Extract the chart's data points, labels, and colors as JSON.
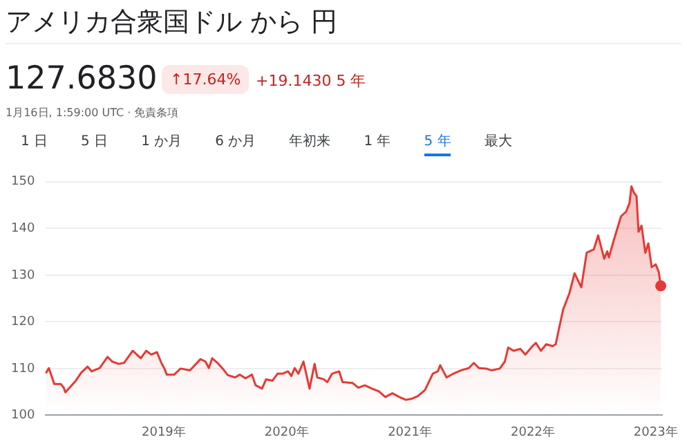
{
  "chart_data": {
    "type": "area",
    "title": "アメリカ合衆国ドル から 円",
    "subtitle": "127.6830",
    "annotations": [
      "↑17.64%",
      "+19.1430 5 年",
      "1月16日, 1:59:00 UTC · 免責条項",
      "1 日",
      "5 日",
      "1 か月",
      "6 か月",
      "年初来",
      "1 年",
      "5 年",
      "最大"
    ],
    "x": [
      "2018-01-16",
      "2018-01-25",
      "2018-02-10",
      "2018-03-01",
      "2018-03-10",
      "2018-03-15",
      "2018-04-15",
      "2018-05-01",
      "2018-05-20",
      "2018-06-01",
      "2018-06-25",
      "2018-07-18",
      "2018-08-01",
      "2018-08-20",
      "2018-09-05",
      "2018-10-01",
      "2018-10-25",
      "2018-11-10",
      "2018-11-25",
      "2018-12-12",
      "2018-12-25",
      "2019-01-03",
      "2019-01-10",
      "2019-02-01",
      "2019-02-20",
      "2019-03-20",
      "2019-04-20",
      "2019-05-05",
      "2019-05-15",
      "2019-05-25",
      "2019-06-10",
      "2019-06-25",
      "2019-07-10",
      "2019-08-01",
      "2019-08-15",
      "2019-09-01",
      "2019-09-20",
      "2019-10-01",
      "2019-10-20",
      "2019-11-01",
      "2019-11-20",
      "2019-12-05",
      "2019-12-20",
      "2020-01-05",
      "2020-01-15",
      "2020-01-25",
      "2020-02-05",
      "2020-02-20",
      "2020-03-09",
      "2020-03-24",
      "2020-04-01",
      "2020-04-20",
      "2020-05-01",
      "2020-05-15",
      "2020-06-05",
      "2020-06-15",
      "2020-07-15",
      "2020-08-01",
      "2020-08-20",
      "2020-09-10",
      "2020-10-01",
      "2020-10-20",
      "2020-11-10",
      "2020-12-01",
      "2020-12-20",
      "2021-01-05",
      "2021-01-25",
      "2021-02-15",
      "2021-03-10",
      "2021-03-25",
      "2021-04-01",
      "2021-04-20",
      "2021-05-10",
      "2021-06-01",
      "2021-06-25",
      "2021-07-10",
      "2021-07-25",
      "2021-08-15",
      "2021-09-01",
      "2021-09-25",
      "2021-10-10",
      "2021-10-20",
      "2021-11-05",
      "2021-11-25",
      "2021-12-10",
      "2021-12-31",
      "2022-01-10",
      "2022-01-25",
      "2022-02-10",
      "2022-03-01",
      "2022-03-10",
      "2022-03-20",
      "2022-04-01",
      "2022-04-20",
      "2022-05-05",
      "2022-05-25",
      "2022-06-10",
      "2022-07-01",
      "2022-07-14",
      "2022-08-01",
      "2022-08-10",
      "2022-08-15",
      "2022-08-30",
      "2022-09-20",
      "2022-10-05",
      "2022-10-15",
      "2022-10-21",
      "2022-10-28",
      "2022-11-05",
      "2022-11-11",
      "2022-11-20",
      "2022-12-01",
      "2022-12-10",
      "2022-12-20",
      "2023-01-01",
      "2023-01-10",
      "2023-01-16"
    ],
    "series": [
      {
        "color": "#e53935",
        "values": [
          109,
          110.1,
          106.7,
          106.7,
          105.9,
          104.9,
          107.4,
          109.1,
          110.4,
          109.4,
          110.1,
          112.5,
          111.5,
          111,
          111.2,
          113.8,
          112.2,
          113.8,
          113,
          113.5,
          111.2,
          110,
          108.7,
          108.7,
          110,
          109.6,
          112,
          111.5,
          110.1,
          112.2,
          111.2,
          110,
          108.6,
          108.1,
          108.7,
          107.9,
          108.7,
          106.4,
          105.7,
          107.7,
          107.4,
          108.9,
          108.9,
          109.4,
          108.4,
          110.1,
          108.9,
          111.5,
          105.7,
          111,
          108.1,
          107.7,
          107.1,
          108.9,
          109.4,
          107.1,
          106.9,
          105.9,
          106.4,
          105.7,
          105.1,
          103.9,
          104.7,
          103.9,
          103.3,
          103.5,
          104.1,
          105.4,
          108.9,
          109.4,
          110.7,
          108.1,
          108.9,
          109.6,
          110.1,
          111.2,
          110.1,
          110,
          109.6,
          110,
          111.5,
          114.5,
          113.8,
          114.2,
          113,
          114.8,
          115.5,
          113.8,
          115.2,
          114.8,
          115.2,
          118.6,
          122.6,
          126.2,
          130.4,
          127.4,
          134.8,
          135.5,
          138.5,
          133.5,
          135.1,
          133.8,
          137.6,
          142.6,
          143.6,
          145.4,
          149,
          147.7,
          146.9,
          139.3,
          140.6,
          134.8,
          136.8,
          131.7,
          132.3,
          130.7,
          127.7
        ]
      }
    ],
    "xlim": [
      "2018-01-16",
      "2023-01-20"
    ],
    "xticks": [
      {
        "value": "2019-01-01",
        "label": "2019年"
      },
      {
        "value": "2020-01-01",
        "label": "2020年"
      },
      {
        "value": "2021-01-01",
        "label": "2021年"
      },
      {
        "value": "2022-01-01",
        "label": "2022年"
      },
      {
        "value": "2023-01-01",
        "label": "2023年"
      }
    ],
    "ylim": [
      100,
      150
    ],
    "yticks": [
      100,
      110,
      120,
      130,
      140,
      150
    ],
    "grid": "y"
  }
}
